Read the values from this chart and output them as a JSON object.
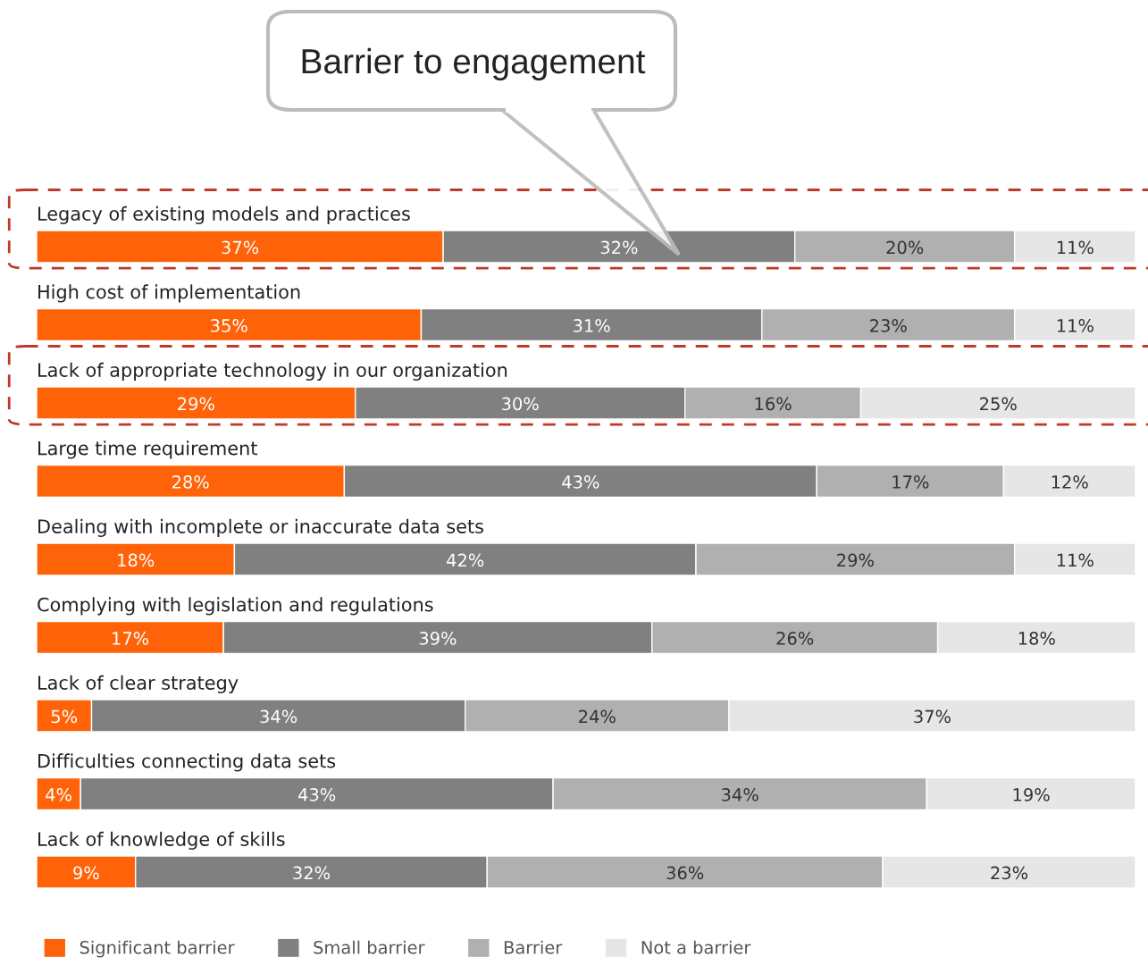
{
  "chart_data": {
    "type": "bar",
    "orientation": "horizontal",
    "stacked": true,
    "title": "Barrier to engagement",
    "categories": [
      "Legacy of existing models and practices",
      "High cost of implementation",
      "Lack of appropriate technology in our organization",
      "Large time requirement",
      "Dealing with incomplete or inaccurate data sets",
      "Complying with legislation and regulations",
      "Lack of clear strategy",
      "Difficulties connecting data sets",
      "Lack of knowledge of skills"
    ],
    "series": [
      {
        "name": "Significant barrier",
        "color": "#ff6309",
        "values": [
          37,
          35,
          29,
          28,
          18,
          17,
          5,
          4,
          9
        ],
        "value_labels": [
          "37%",
          "35%",
          "29%",
          "28%",
          "18%",
          "17%",
          "5%",
          "4%",
          "9%"
        ]
      },
      {
        "name": "Small barrier",
        "color": "#808080",
        "values": [
          32,
          31,
          30,
          43,
          42,
          39,
          34,
          43,
          32
        ],
        "value_labels": [
          "32%",
          "31%",
          "30%",
          "43%",
          "42%",
          "39%",
          "34%",
          "43%",
          "32%"
        ]
      },
      {
        "name": "Barrier",
        "color": "#b0b0b0",
        "values": [
          20,
          23,
          16,
          17,
          29,
          26,
          24,
          34,
          36
        ],
        "value_labels": [
          "20%",
          "23%",
          "16%",
          "17%",
          "29%",
          "26%",
          "24%",
          "34%",
          "36%"
        ]
      },
      {
        "name": "Not a barrier",
        "color": "#e6e6e6",
        "values": [
          11,
          11,
          25,
          12,
          11,
          18,
          37,
          19,
          23
        ],
        "value_labels": [
          "11%",
          "11%",
          "25%",
          "12%",
          "11%",
          "18%",
          "37%",
          "19%",
          "23%"
        ]
      }
    ],
    "legend": "bottom"
  }
}
